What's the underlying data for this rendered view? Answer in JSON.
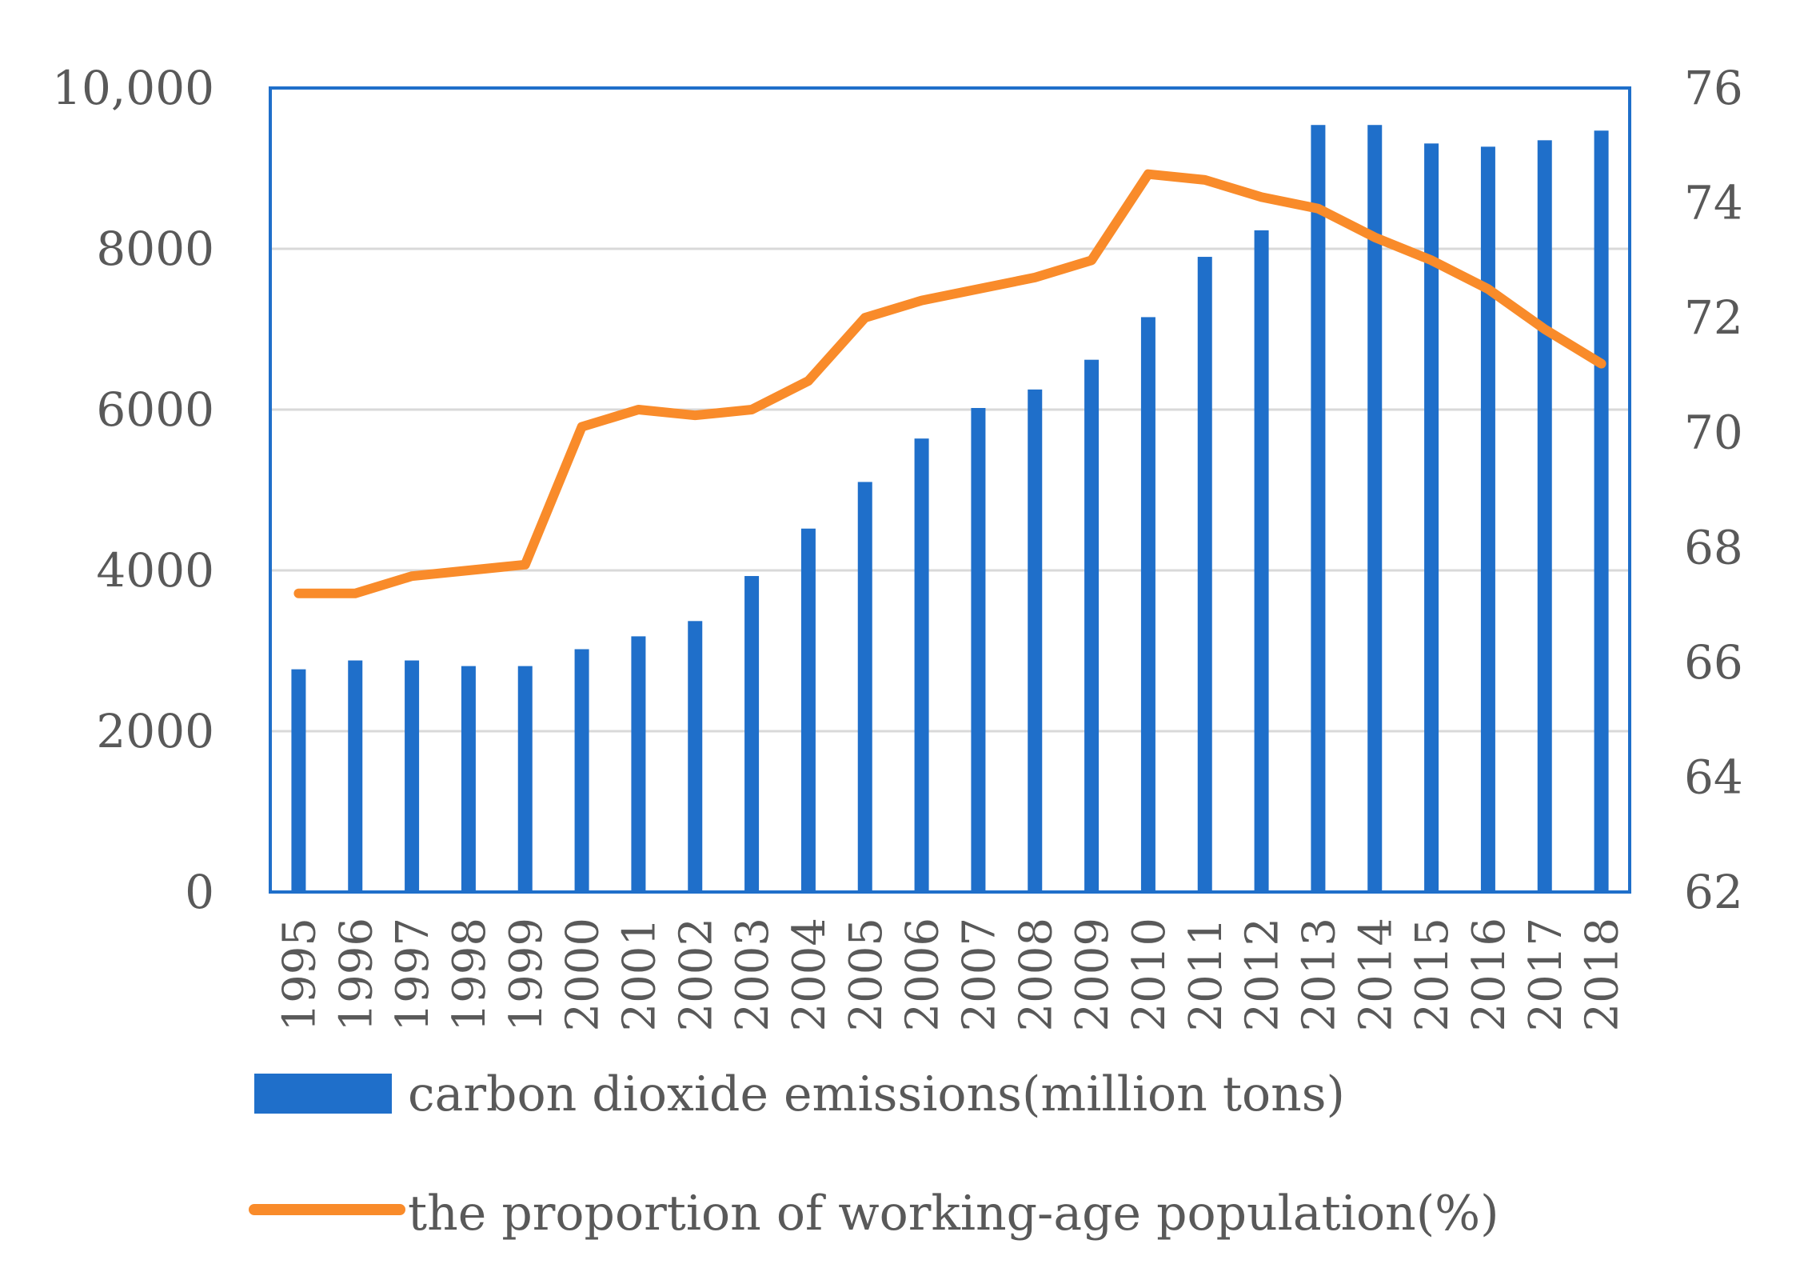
{
  "chart_data": {
    "type": "bar",
    "categories": [
      "1995",
      "1996",
      "1997",
      "1998",
      "1999",
      "2000",
      "2001",
      "2002",
      "2003",
      "2004",
      "2005",
      "2006",
      "2007",
      "2008",
      "2009",
      "2010",
      "2011",
      "2012",
      "2013",
      "2014",
      "2015",
      "2016",
      "2017",
      "2018"
    ],
    "series": [
      {
        "name": "carbon dioxide emissions(million tons)",
        "type": "bar",
        "axis": "left",
        "color": "#1f6fca",
        "values": [
          2770,
          2880,
          2880,
          2810,
          2810,
          3020,
          3180,
          3370,
          3930,
          4520,
          5100,
          5640,
          6020,
          6250,
          6620,
          7150,
          7900,
          8230,
          9540,
          9540,
          9310,
          9270,
          9350,
          9470
        ]
      },
      {
        "name": "the proportion of working-age population(%)",
        "type": "line",
        "axis": "right",
        "color": "#f98b2a",
        "values": [
          67.2,
          67.2,
          67.5,
          67.6,
          67.7,
          70.1,
          70.4,
          70.3,
          70.4,
          70.9,
          72.0,
          72.3,
          72.5,
          72.7,
          73.0,
          74.5,
          74.4,
          74.1,
          73.9,
          73.4,
          73.0,
          72.5,
          71.8,
          71.2
        ]
      }
    ],
    "yaxis_left": {
      "min": 0,
      "max": 10000,
      "ticks": [
        "0",
        "2000",
        "4000",
        "6000",
        "8000",
        "10,000"
      ]
    },
    "yaxis_right": {
      "min": 62,
      "max": 76,
      "ticks": [
        "62",
        "64",
        "66",
        "68",
        "70",
        "72",
        "74",
        "76"
      ]
    },
    "title": "",
    "xlabel": "",
    "ylabel": "",
    "grid": true,
    "legend_position": "bottom"
  },
  "colors": {
    "frame": "#1f6fca",
    "grid": "#d9d9d9",
    "text": "#595959"
  }
}
